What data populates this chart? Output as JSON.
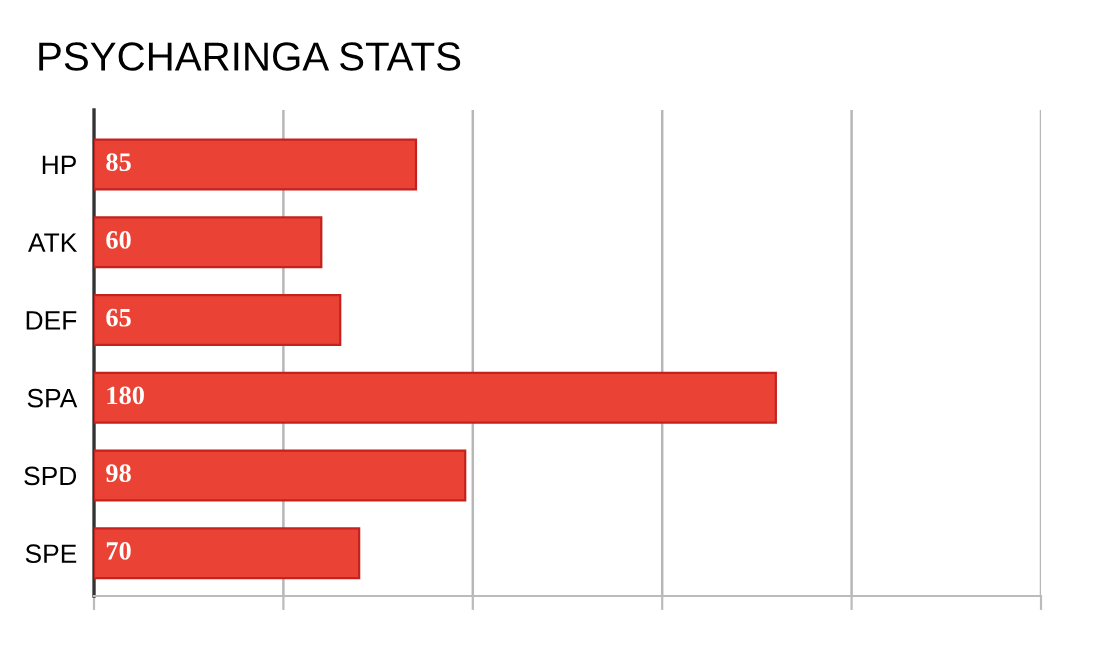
{
  "chart_data": {
    "type": "bar",
    "orientation": "horizontal",
    "title": "PSYCHARINGA STATS",
    "categories": [
      "HP",
      "ATK",
      "DEF",
      "SPA",
      "SPD",
      "SPE"
    ],
    "values": [
      85,
      60,
      65,
      180,
      98,
      70
    ],
    "color": "#ea4335",
    "xlim": [
      0,
      250
    ],
    "xticks": [
      {
        "value": 0,
        "label": null
      },
      {
        "value": 50,
        "label": null
      },
      {
        "value": 100,
        "label": null
      },
      {
        "value": 150,
        "label": null
      },
      {
        "value": 200,
        "label": null
      },
      {
        "value": 250,
        "label": null
      }
    ],
    "tick_labels": "y",
    "grid": "x",
    "data_labels": true,
    "legend": false
  }
}
